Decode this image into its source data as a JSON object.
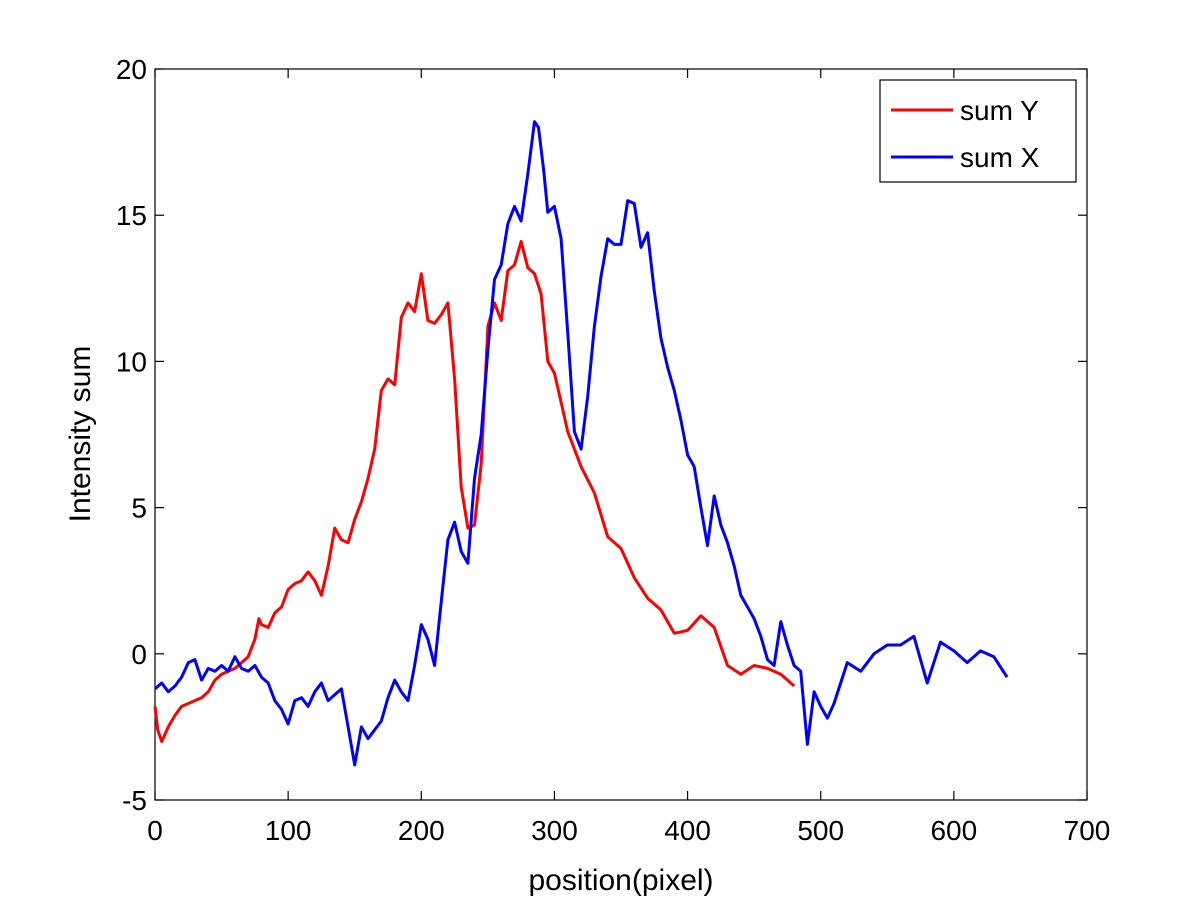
{
  "chart_data": {
    "type": "line",
    "title": "",
    "xlabel": "position(pixel)",
    "ylabel": "Intensity sum",
    "xlim": [
      0,
      700
    ],
    "ylim": [
      -5,
      20
    ],
    "xticks": [
      0,
      100,
      200,
      300,
      400,
      500,
      600,
      700
    ],
    "yticks": [
      -5,
      0,
      5,
      10,
      15,
      20
    ],
    "grid": false,
    "legend_position": "top-right",
    "series": [
      {
        "name": "sum Y",
        "color": "#ff0000",
        "x": [
          0,
          2,
          5,
          10,
          15,
          20,
          25,
          30,
          35,
          40,
          45,
          50,
          55,
          60,
          65,
          70,
          75,
          78,
          80,
          85,
          90,
          95,
          100,
          105,
          110,
          115,
          120,
          125,
          130,
          135,
          140,
          145,
          150,
          155,
          160,
          165,
          170,
          175,
          180,
          185,
          190,
          195,
          200,
          205,
          210,
          215,
          220,
          225,
          230,
          235,
          240,
          245,
          250,
          255,
          260,
          265,
          270,
          275,
          280,
          285,
          290,
          295,
          300,
          305,
          310,
          315,
          320,
          330,
          340,
          350,
          360,
          370,
          380,
          390,
          400,
          410,
          420,
          430,
          440,
          450,
          460,
          470,
          480
        ],
        "values": [
          -1.8,
          -2.6,
          -3.0,
          -2.5,
          -2.1,
          -1.8,
          -1.7,
          -1.6,
          -1.5,
          -1.3,
          -0.9,
          -0.7,
          -0.6,
          -0.5,
          -0.3,
          -0.1,
          0.5,
          1.2,
          1.0,
          0.9,
          1.4,
          1.6,
          2.2,
          2.4,
          2.5,
          2.8,
          2.5,
          2.0,
          3.0,
          4.3,
          3.9,
          3.8,
          4.6,
          5.2,
          6.0,
          7.0,
          9.0,
          9.4,
          9.2,
          11.5,
          12.0,
          11.7,
          13.0,
          11.4,
          11.3,
          11.6,
          12.0,
          9.4,
          5.7,
          4.3,
          4.4,
          6.5,
          11.2,
          12.0,
          11.4,
          13.1,
          13.3,
          14.1,
          13.2,
          13.0,
          12.3,
          10.0,
          9.6,
          8.6,
          7.6,
          7.0,
          6.4,
          5.5,
          4.0,
          3.6,
          2.6,
          1.9,
          1.5,
          0.7,
          0.8,
          1.3,
          0.9,
          -0.4,
          -0.7,
          -0.4,
          -0.5,
          -0.7,
          -1.1
        ]
      },
      {
        "name": "sum X",
        "color": "#0000ff",
        "x": [
          0,
          5,
          10,
          15,
          20,
          25,
          30,
          35,
          40,
          45,
          50,
          55,
          60,
          65,
          70,
          75,
          80,
          85,
          90,
          95,
          100,
          105,
          110,
          115,
          120,
          125,
          130,
          135,
          140,
          145,
          150,
          155,
          160,
          165,
          170,
          175,
          180,
          185,
          190,
          195,
          200,
          205,
          210,
          215,
          220,
          225,
          230,
          235,
          240,
          245,
          250,
          255,
          260,
          265,
          270,
          275,
          280,
          285,
          288,
          292,
          295,
          300,
          305,
          310,
          315,
          320,
          325,
          330,
          335,
          340,
          345,
          350,
          355,
          360,
          365,
          370,
          375,
          380,
          385,
          390,
          395,
          400,
          405,
          410,
          415,
          420,
          425,
          430,
          435,
          440,
          445,
          450,
          455,
          460,
          465,
          470,
          475,
          480,
          485,
          490,
          495,
          500,
          505,
          510,
          520,
          530,
          540,
          550,
          560,
          570,
          580,
          590,
          600,
          610,
          620,
          630,
          640
        ],
        "values": [
          -1.2,
          -1.0,
          -1.3,
          -1.1,
          -0.8,
          -0.3,
          -0.2,
          -0.9,
          -0.5,
          -0.6,
          -0.4,
          -0.6,
          -0.1,
          -0.5,
          -0.6,
          -0.4,
          -0.8,
          -1.0,
          -1.6,
          -1.9,
          -2.4,
          -1.6,
          -1.5,
          -1.8,
          -1.3,
          -1.0,
          -1.6,
          -1.4,
          -1.2,
          -2.5,
          -3.8,
          -2.5,
          -2.9,
          -2.6,
          -2.3,
          -1.5,
          -0.9,
          -1.3,
          -1.6,
          -0.4,
          1.0,
          0.5,
          -0.4,
          1.8,
          3.9,
          4.5,
          3.5,
          3.1,
          6.0,
          7.5,
          10.4,
          12.8,
          13.3,
          14.7,
          15.3,
          14.8,
          16.4,
          18.2,
          18.0,
          16.5,
          15.1,
          15.3,
          14.2,
          11.0,
          7.6,
          7.0,
          8.8,
          11.2,
          12.9,
          14.2,
          14.0,
          14.0,
          15.5,
          15.4,
          13.9,
          14.4,
          12.4,
          10.8,
          9.8,
          9.0,
          8.0,
          6.8,
          6.4,
          5.0,
          3.7,
          5.4,
          4.4,
          3.8,
          3.0,
          2.0,
          1.6,
          1.2,
          0.6,
          -0.2,
          -0.4,
          1.1,
          0.3,
          -0.4,
          -0.6,
          -3.1,
          -1.3,
          -1.8,
          -2.2,
          -1.7,
          -0.3,
          -0.6,
          0.0,
          0.3,
          0.3,
          0.6,
          -1.0,
          0.4,
          0.1,
          -0.3,
          0.1,
          -0.1,
          -0.8
        ]
      }
    ]
  }
}
